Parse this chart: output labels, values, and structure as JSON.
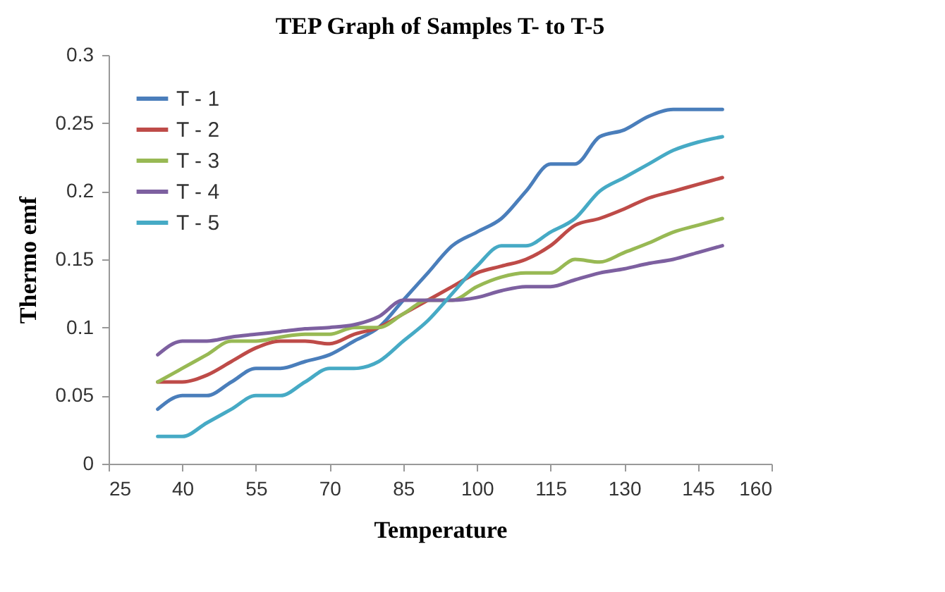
{
  "chart_data": {
    "type": "line",
    "title": "TEP Graph of Samples T- to T-5",
    "xlabel": "Temperature",
    "ylabel": "Thermo emf",
    "x": [
      35,
      40,
      45,
      50,
      55,
      60,
      65,
      70,
      75,
      80,
      85,
      90,
      95,
      100,
      105,
      110,
      115,
      120,
      125,
      130,
      135,
      140,
      145,
      150
    ],
    "series": [
      {
        "name": "T - 1",
        "color": "#4a7ebb",
        "values": [
          0.04,
          0.05,
          0.05,
          0.06,
          0.07,
          0.07,
          0.075,
          0.08,
          0.09,
          0.1,
          0.12,
          0.14,
          0.16,
          0.17,
          0.18,
          0.2,
          0.22,
          0.22,
          0.24,
          0.245,
          0.255,
          0.26,
          0.26,
          0.26
        ]
      },
      {
        "name": "T - 2",
        "color": "#be4b48",
        "values": [
          0.06,
          0.06,
          0.065,
          0.075,
          0.085,
          0.09,
          0.09,
          0.088,
          0.095,
          0.1,
          0.11,
          0.12,
          0.13,
          0.14,
          0.145,
          0.15,
          0.16,
          0.175,
          0.18,
          0.187,
          0.195,
          0.2,
          0.205,
          0.21
        ]
      },
      {
        "name": "T - 3",
        "color": "#98b954",
        "values": [
          0.06,
          0.07,
          0.08,
          0.09,
          0.09,
          0.093,
          0.095,
          0.095,
          0.1,
          0.1,
          0.11,
          0.12,
          0.12,
          0.13,
          0.137,
          0.14,
          0.14,
          0.15,
          0.148,
          0.155,
          0.162,
          0.17,
          0.175,
          0.18
        ]
      },
      {
        "name": "T - 4",
        "color": "#7d60a0",
        "values": [
          0.08,
          0.09,
          0.09,
          0.093,
          0.095,
          0.097,
          0.099,
          0.1,
          0.102,
          0.108,
          0.12,
          0.12,
          0.12,
          0.122,
          0.127,
          0.13,
          0.13,
          0.135,
          0.14,
          0.143,
          0.147,
          0.15,
          0.155,
          0.16
        ]
      },
      {
        "name": "T - 5",
        "color": "#46aac5",
        "values": [
          0.02,
          0.02,
          0.03,
          0.04,
          0.05,
          0.05,
          0.06,
          0.07,
          0.07,
          0.075,
          0.09,
          0.105,
          0.125,
          0.145,
          0.16,
          0.16,
          0.17,
          0.18,
          0.2,
          0.21,
          0.22,
          0.23,
          0.236,
          0.24
        ]
      }
    ],
    "xlim": [
      25,
      160
    ],
    "xticks": [
      25,
      40,
      55,
      70,
      85,
      100,
      115,
      130,
      145,
      160
    ],
    "ylim": [
      0,
      0.3
    ],
    "yticks": [
      0,
      0.05,
      0.1,
      0.15,
      0.2,
      0.25,
      0.3
    ],
    "grid": false,
    "legend": "top left",
    "line_style": "solid",
    "marker": "none"
  }
}
